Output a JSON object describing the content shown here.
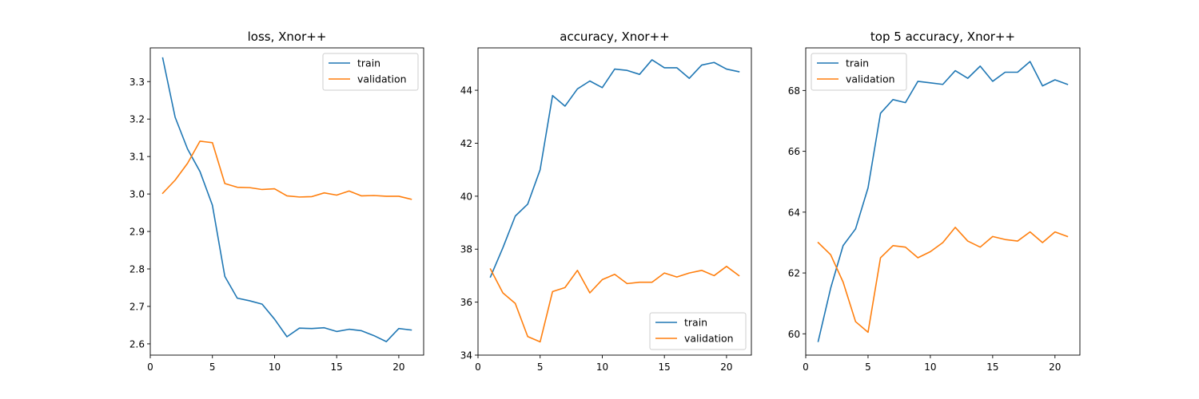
{
  "colors": {
    "train": "#1f77b4",
    "validation": "#ff7f0e",
    "axis": "#000000",
    "legend_border": "#cccccc"
  },
  "chart_data": [
    {
      "type": "line",
      "title": "loss, Xnor++",
      "xlabel": "",
      "ylabel": "",
      "x": [
        1,
        2,
        3,
        4,
        5,
        6,
        7,
        8,
        9,
        10,
        11,
        12,
        13,
        14,
        15,
        16,
        17,
        18,
        19,
        20,
        21
      ],
      "xlim": [
        0,
        22
      ],
      "ylim": [
        2.57,
        3.39
      ],
      "xticks": [
        0,
        5,
        10,
        15,
        20
      ],
      "yticks": [
        2.6,
        2.7,
        2.8,
        2.9,
        3.0,
        3.1,
        3.2,
        3.3
      ],
      "ytick_labels": [
        "2.6",
        "2.7",
        "2.8",
        "2.9",
        "3.0",
        "3.1",
        "3.2",
        "3.3"
      ],
      "legend_loc": "upper right",
      "grid": false,
      "series": [
        {
          "name": "train",
          "values": [
            3.363,
            3.205,
            3.12,
            3.06,
            2.97,
            2.78,
            2.722,
            2.715,
            2.706,
            2.666,
            2.619,
            2.642,
            2.641,
            2.643,
            2.633,
            2.639,
            2.635,
            2.622,
            2.606,
            2.641,
            2.637
          ]
        },
        {
          "name": "validation",
          "values": [
            3.002,
            3.037,
            3.082,
            3.141,
            3.137,
            3.028,
            3.018,
            3.017,
            3.012,
            3.014,
            2.995,
            2.992,
            2.993,
            3.003,
            2.997,
            3.008,
            2.995,
            2.996,
            2.994,
            2.994,
            2.986
          ]
        }
      ]
    },
    {
      "type": "line",
      "title": "accuracy, Xnor++",
      "xlabel": "",
      "ylabel": "",
      "x": [
        1,
        2,
        3,
        4,
        5,
        6,
        7,
        8,
        9,
        10,
        11,
        12,
        13,
        14,
        15,
        16,
        17,
        18,
        19,
        20,
        21
      ],
      "xlim": [
        0,
        22
      ],
      "ylim": [
        34.0,
        45.6
      ],
      "xticks": [
        0,
        5,
        10,
        15,
        20
      ],
      "yticks": [
        34,
        36,
        38,
        40,
        42,
        44
      ],
      "ytick_labels": [
        "34",
        "36",
        "38",
        "40",
        "42",
        "44"
      ],
      "legend_loc": "lower right",
      "grid": false,
      "series": [
        {
          "name": "train",
          "values": [
            36.95,
            38.05,
            39.25,
            39.7,
            41.0,
            43.8,
            43.4,
            44.05,
            44.35,
            44.1,
            44.8,
            44.75,
            44.6,
            45.15,
            44.85,
            44.85,
            44.45,
            44.95,
            45.05,
            44.8,
            44.7
          ]
        },
        {
          "name": "validation",
          "values": [
            37.25,
            36.35,
            35.95,
            34.7,
            34.5,
            36.4,
            36.55,
            37.2,
            36.35,
            36.85,
            37.05,
            36.7,
            36.75,
            36.75,
            37.1,
            36.95,
            37.1,
            37.2,
            37.0,
            37.35,
            37.0
          ]
        }
      ]
    },
    {
      "type": "line",
      "title": "top 5 accuracy, Xnor++",
      "xlabel": "",
      "ylabel": "",
      "x": [
        1,
        2,
        3,
        4,
        5,
        6,
        7,
        8,
        9,
        10,
        11,
        12,
        13,
        14,
        15,
        16,
        17,
        18,
        19,
        20,
        21
      ],
      "xlim": [
        0,
        22
      ],
      "ylim": [
        59.3,
        69.4
      ],
      "xticks": [
        0,
        5,
        10,
        15,
        20
      ],
      "yticks": [
        60,
        62,
        64,
        66,
        68
      ],
      "ytick_labels": [
        "60",
        "62",
        "64",
        "66",
        "68"
      ],
      "legend_loc": "upper left",
      "grid": false,
      "series": [
        {
          "name": "train",
          "values": [
            59.75,
            61.5,
            62.9,
            63.45,
            64.8,
            67.25,
            67.7,
            67.6,
            68.3,
            68.25,
            68.2,
            68.65,
            68.4,
            68.8,
            68.3,
            68.6,
            68.6,
            68.95,
            68.15,
            68.35,
            68.2
          ]
        },
        {
          "name": "validation",
          "values": [
            63.0,
            62.6,
            61.7,
            60.4,
            60.05,
            62.5,
            62.9,
            62.85,
            62.5,
            62.7,
            63.0,
            63.5,
            63.05,
            62.85,
            63.2,
            63.1,
            63.05,
            63.35,
            63.0,
            63.35,
            63.2
          ]
        }
      ]
    }
  ]
}
